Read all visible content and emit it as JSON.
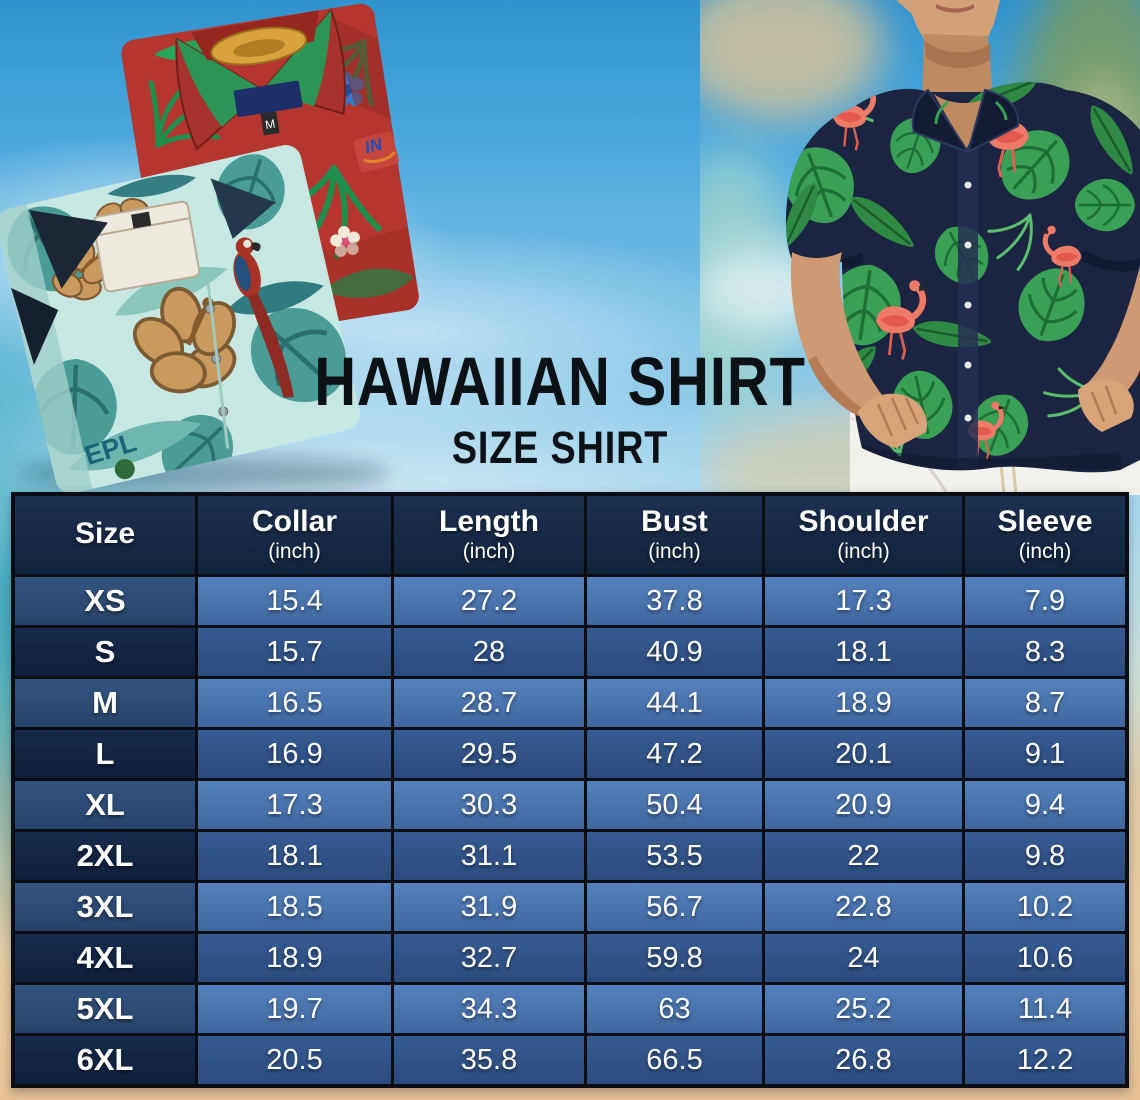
{
  "title": {
    "main": "HAWAIIAN SHIRT",
    "sub": "SIZE SHIRT"
  },
  "size_chart": {
    "columns": [
      {
        "label": "Size",
        "unit": ""
      },
      {
        "label": "Collar",
        "unit": "(inch)"
      },
      {
        "label": "Length",
        "unit": "(inch)"
      },
      {
        "label": "Bust",
        "unit": "(inch)"
      },
      {
        "label": "Shoulder",
        "unit": "(inch)"
      },
      {
        "label": "Sleeve",
        "unit": "(inch)"
      }
    ],
    "rows": [
      {
        "size": "XS",
        "collar": "15.4",
        "length": "27.2",
        "bust": "37.8",
        "shoulder": "17.3",
        "sleeve": "7.9"
      },
      {
        "size": "S",
        "collar": "15.7",
        "length": "28",
        "bust": "40.9",
        "shoulder": "18.1",
        "sleeve": "8.3"
      },
      {
        "size": "M",
        "collar": "16.5",
        "length": "28.7",
        "bust": "44.1",
        "shoulder": "18.9",
        "sleeve": "8.7"
      },
      {
        "size": "L",
        "collar": "16.9",
        "length": "29.5",
        "bust": "47.2",
        "shoulder": "20.1",
        "sleeve": "9.1"
      },
      {
        "size": "XL",
        "collar": "17.3",
        "length": "30.3",
        "bust": "50.4",
        "shoulder": "20.9",
        "sleeve": "9.4"
      },
      {
        "size": "2XL",
        "collar": "18.1",
        "length": "31.1",
        "bust": "53.5",
        "shoulder": "22",
        "sleeve": "9.8"
      },
      {
        "size": "3XL",
        "collar": "18.5",
        "length": "31.9",
        "bust": "56.7",
        "shoulder": "22.8",
        "sleeve": "10.2"
      },
      {
        "size": "4XL",
        "collar": "18.9",
        "length": "32.7",
        "bust": "59.8",
        "shoulder": "24",
        "sleeve": "10.6"
      },
      {
        "size": "5XL",
        "collar": "19.7",
        "length": "34.3",
        "bust": "63",
        "shoulder": "25.2",
        "sleeve": "11.4"
      },
      {
        "size": "6XL",
        "collar": "20.5",
        "length": "35.8",
        "bust": "66.5",
        "shoulder": "26.8",
        "sleeve": "12.2"
      }
    ]
  },
  "photos": {
    "left": {
      "name": "folded-hawaiian-shirts-photo",
      "red_shirt_size_tag": "M",
      "red_shirt_logo_text": "IN",
      "teal_shirt_print_text": "EPL"
    },
    "right": {
      "name": "man-wearing-flamingo-hawaiian-shirt-photo"
    }
  },
  "colors": {
    "grid_line": "#0a0e14",
    "table_header_bg": "#16283f",
    "row_value_light": "#4e7ab4",
    "row_value_dark": "#2f548c",
    "size_col_light": "#2e4d79",
    "size_col_dark": "#122845",
    "title_text": "#0c1116",
    "sky": "#7cc2e6",
    "teal": "#18a0b4",
    "sand": "#eccfa2",
    "shirt_navy": "#1b2440",
    "flamingo_pink": "#ee7a68",
    "leaf_green": "#3aa055"
  }
}
